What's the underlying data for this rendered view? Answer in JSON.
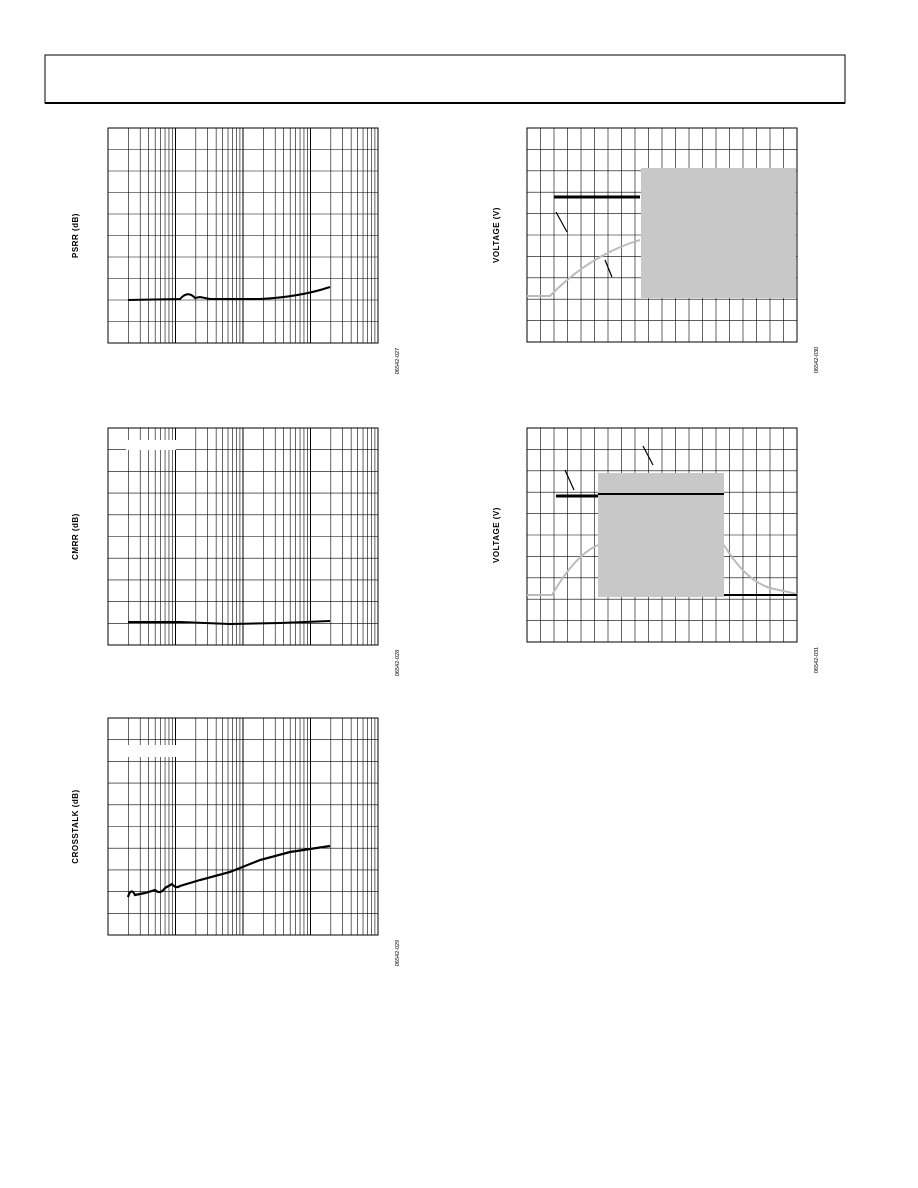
{
  "figures": [
    {
      "y_label": "PSRR (dB)",
      "figure_id": "06542-027"
    },
    {
      "y_label": "VOLTAGE (V)",
      "figure_id": "06542-030"
    },
    {
      "y_label": "CMRR (dB)",
      "figure_id": "06542-028"
    },
    {
      "y_label": "VOLTAGE (V)",
      "figure_id": "06542-031"
    },
    {
      "y_label": "CROSSTALK (dB)",
      "figure_id": "06542-029"
    }
  ]
}
